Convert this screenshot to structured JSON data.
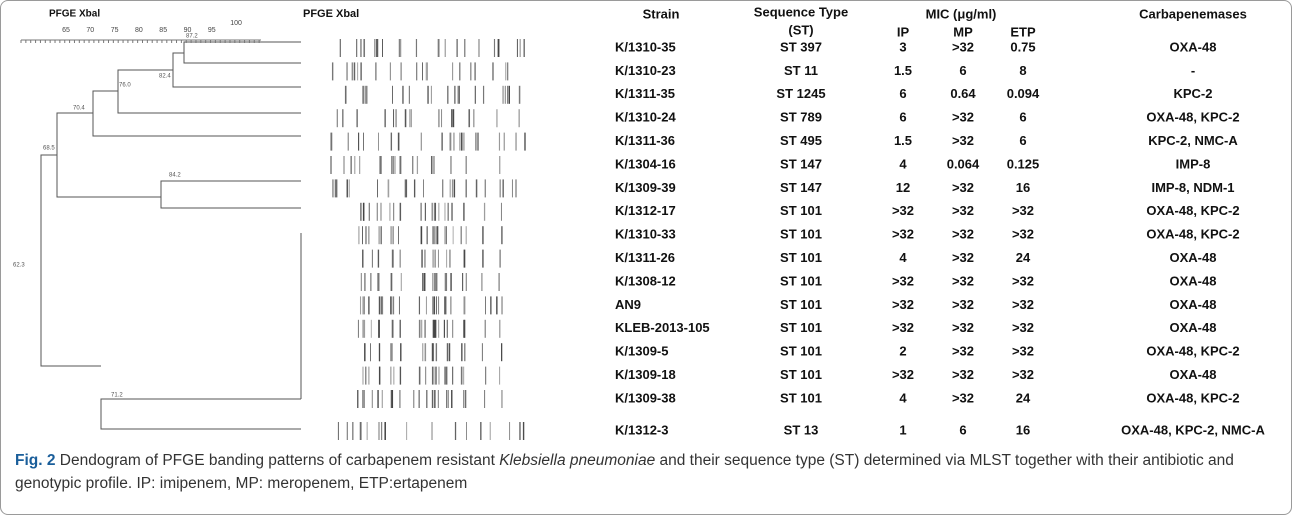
{
  "dendrogram": {
    "title": "PFGE Xbal",
    "scale_ticks": [
      "65",
      "70",
      "75",
      "80",
      "85",
      "90",
      "95",
      "100"
    ],
    "node_labels": [
      "87.2",
      "82.4",
      "76.0",
      "70.4",
      "68.5",
      "84.2",
      "62.3",
      "71.2"
    ]
  },
  "bands_title": "PFGE Xbal",
  "table": {
    "headers": {
      "strain": "Strain",
      "st_line1": "Sequence Type",
      "st_line2": "(ST)",
      "mic": "MIC (μg/ml)",
      "ip": "IP",
      "mp": "MP",
      "etp": "ETP",
      "carbapenemases": "Carbapenemases"
    },
    "rows": [
      [
        "K/1310-35",
        "ST 397",
        "3",
        ">32",
        "0.75",
        "OXA-48"
      ],
      [
        "K/1310-23",
        "ST 11",
        "1.5",
        "6",
        "8",
        "-"
      ],
      [
        "K/1311-35",
        "ST 1245",
        "6",
        "0.64",
        "0.094",
        "KPC-2"
      ],
      [
        "K/1310-24",
        "ST 789",
        "6",
        ">32",
        "6",
        "OXA-48,  KPC-2"
      ],
      [
        "K/1311-36",
        "ST 495",
        "1.5",
        ">32",
        "6",
        "KPC-2, NMC-A"
      ],
      [
        "K/1304-16",
        "ST 147",
        "4",
        "0.064",
        "0.125",
        "IMP-8"
      ],
      [
        "K/1309-39",
        "ST 147",
        "12",
        ">32",
        "16",
        "IMP-8, NDM-1"
      ],
      [
        "K/1312-17",
        "ST 101",
        ">32",
        ">32",
        ">32",
        "OXA-48, KPC-2"
      ],
      [
        "K/1310-33",
        "ST 101",
        ">32",
        ">32",
        ">32",
        "OXA-48, KPC-2"
      ],
      [
        "K/1311-26",
        "ST 101",
        "4",
        ">32",
        "24",
        "OXA-48"
      ],
      [
        "K/1308-12",
        "ST 101",
        ">32",
        ">32",
        ">32",
        "OXA-48"
      ],
      [
        "AN9",
        "ST 101",
        ">32",
        ">32",
        ">32",
        "OXA-48"
      ],
      [
        "KLEB-2013-105",
        "ST 101",
        ">32",
        ">32",
        ">32",
        "OXA-48"
      ],
      [
        "K/1309-5",
        "ST 101",
        "2",
        ">32",
        ">32",
        "OXA-48, KPC-2"
      ],
      [
        "K/1309-18",
        "ST 101",
        ">32",
        ">32",
        ">32",
        "OXA-48"
      ],
      [
        "K/1309-38",
        "ST 101",
        "4",
        ">32",
        "24",
        "OXA-48, KPC-2"
      ],
      [
        "K/1312-3",
        "ST 13",
        "1",
        "6",
        "16",
        "OXA-48, KPC-2, NMC-A"
      ]
    ]
  },
  "caption": {
    "label": "Fig. 2",
    "text_before": "Dendogram of PFGE banding patterns of carbapenem resistant ",
    "italic": "Klebsiella pneumoniae",
    "text_after": " and their sequence type (ST) determined via MLST together with their antibiotic and genotypic profile. IP: imipenem, MP: meropenem, ETP:ertapenem"
  }
}
